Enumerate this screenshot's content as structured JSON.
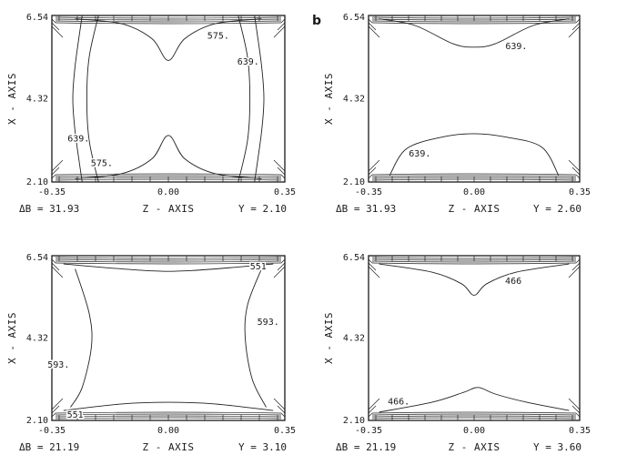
{
  "chart_data": [
    {
      "type": "contour",
      "panel_label": "",
      "xlabel": "Z - AXIS",
      "ylabel": "X - AXIS",
      "x_ticks": [
        "-0.35",
        "0.00",
        "0.35"
      ],
      "y_ticks": [
        "6.54",
        "4.32",
        "2.10"
      ],
      "xlim": [
        -0.35,
        0.35
      ],
      "ylim": [
        2.1,
        6.54
      ],
      "delta_b_text": "ΔB = 31.93",
      "y_value_text": "Y =  2.10",
      "contour_labels": [
        {
          "text": "575.",
          "z": 0.15,
          "x": 6.0
        },
        {
          "text": "639.",
          "z": 0.24,
          "x": 5.3
        },
        {
          "text": "639.",
          "z": -0.27,
          "x": 3.25
        },
        {
          "text": "575.",
          "z": -0.2,
          "x": 2.6
        }
      ]
    },
    {
      "type": "contour",
      "panel_label": "b",
      "xlabel": "Z - AXIS",
      "ylabel": "X - AXIS",
      "x_ticks": [
        "-0.35",
        "0.00",
        "0.35"
      ],
      "y_ticks": [
        "6.54",
        "4.32",
        "2.10"
      ],
      "xlim": [
        -0.35,
        0.35
      ],
      "ylim": [
        2.1,
        6.54
      ],
      "delta_b_text": "ΔB = 31.93",
      "y_value_text": "Y =  2.60",
      "contour_labels": [
        {
          "text": "639.",
          "z": 0.14,
          "x": 5.72
        },
        {
          "text": "639.",
          "z": -0.18,
          "x": 2.85
        }
      ]
    },
    {
      "type": "contour",
      "panel_label": "",
      "xlabel": "Z - AXIS",
      "ylabel": "X - AXIS",
      "x_ticks": [
        "-0.35",
        "0.00",
        "0.35"
      ],
      "y_ticks": [
        "6.54",
        "4.32",
        "2.10"
      ],
      "xlim": [
        -0.35,
        0.35
      ],
      "ylim": [
        2.1,
        6.54
      ],
      "delta_b_text": "ΔB = 21.19",
      "y_value_text": "Y =  3.10",
      "contour_labels": [
        {
          "text": "551",
          "z": 0.27,
          "x": 6.25
        },
        {
          "text": "593.",
          "z": 0.3,
          "x": 4.75
        },
        {
          "text": "593.",
          "z": -0.33,
          "x": 3.6
        },
        {
          "text": "551",
          "z": -0.28,
          "x": 2.25
        }
      ]
    },
    {
      "type": "contour",
      "panel_label": "",
      "xlabel": "Z - AXIS",
      "ylabel": "X - AXIS",
      "x_ticks": [
        "-0.35",
        "0.00",
        "0.35"
      ],
      "y_ticks": [
        "6.54",
        "4.32",
        "2.10"
      ],
      "xlim": [
        -0.35,
        0.35
      ],
      "ylim": [
        2.1,
        6.54
      ],
      "delta_b_text": "ΔB = 21.19",
      "y_value_text": "Y =  3.60",
      "contour_labels": [
        {
          "text": "466",
          "z": 0.13,
          "x": 5.85
        },
        {
          "text": "466.",
          "z": -0.25,
          "x": 2.6
        }
      ]
    }
  ]
}
